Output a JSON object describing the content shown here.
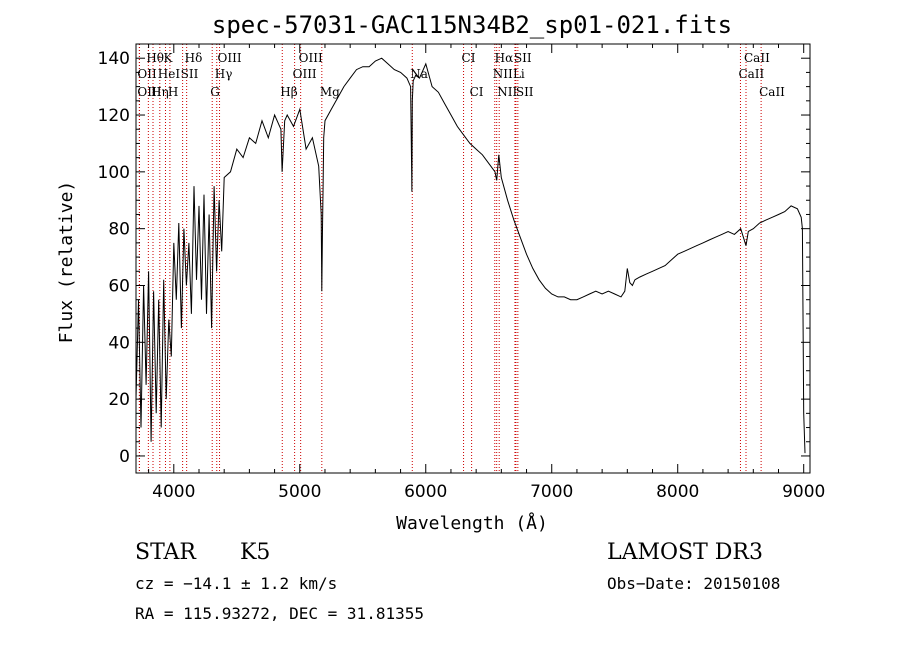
{
  "chart_data": {
    "type": "line",
    "title": "spec-57031-GAC115N34B2_sp01-021.fits",
    "xlabel": "Wavelength (Å)",
    "ylabel": "Flux (relative)",
    "xlim": [
      3700,
      9050
    ],
    "ylim": [
      -6,
      145
    ],
    "xticks": [
      4000,
      5000,
      6000,
      7000,
      8000,
      9000
    ],
    "yticks": [
      0,
      20,
      40,
      60,
      80,
      100,
      120,
      140
    ],
    "series": [
      {
        "name": "flux",
        "x": [
          3700,
          3720,
          3740,
          3760,
          3780,
          3800,
          3820,
          3840,
          3860,
          3880,
          3900,
          3920,
          3940,
          3960,
          3980,
          4000,
          4020,
          4040,
          4060,
          4080,
          4100,
          4120,
          4140,
          4160,
          4180,
          4200,
          4220,
          4240,
          4260,
          4280,
          4300,
          4320,
          4340,
          4360,
          4380,
          4400,
          4450,
          4500,
          4550,
          4600,
          4650,
          4700,
          4750,
          4800,
          4850,
          4860,
          4880,
          4900,
          4950,
          5000,
          5050,
          5100,
          5150,
          5170,
          5175,
          5180,
          5185,
          5190,
          5200,
          5250,
          5300,
          5350,
          5400,
          5450,
          5500,
          5550,
          5600,
          5650,
          5700,
          5750,
          5800,
          5850,
          5880,
          5890,
          5893,
          5896,
          5900,
          5920,
          5950,
          6000,
          6050,
          6100,
          6150,
          6200,
          6250,
          6300,
          6350,
          6400,
          6450,
          6500,
          6550,
          6563,
          6580,
          6600,
          6650,
          6700,
          6750,
          6800,
          6850,
          6900,
          6950,
          7000,
          7050,
          7100,
          7150,
          7200,
          7250,
          7300,
          7350,
          7400,
          7450,
          7500,
          7550,
          7580,
          7600,
          7620,
          7640,
          7660,
          7700,
          7750,
          7800,
          7850,
          7900,
          7950,
          8000,
          8050,
          8100,
          8150,
          8200,
          8250,
          8300,
          8350,
          8400,
          8450,
          8500,
          8542,
          8560,
          8600,
          8650,
          8700,
          8750,
          8800,
          8850,
          8900,
          8950,
          8980,
          8990,
          9000,
          9010
        ],
        "values": [
          20,
          55,
          10,
          60,
          25,
          65,
          5,
          58,
          15,
          55,
          10,
          62,
          20,
          48,
          35,
          75,
          55,
          82,
          45,
          80,
          60,
          75,
          50,
          95,
          62,
          88,
          55,
          92,
          50,
          85,
          45,
          95,
          65,
          90,
          72,
          98,
          100,
          108,
          105,
          112,
          110,
          118,
          112,
          120,
          115,
          100,
          118,
          120,
          116,
          122,
          108,
          112,
          102,
          85,
          58,
          80,
          95,
          112,
          118,
          122,
          126,
          130,
          133,
          136,
          137,
          137,
          139,
          140,
          138,
          136,
          135,
          133,
          130,
          93,
          125,
          128,
          132,
          134,
          133,
          138,
          130,
          128,
          124,
          120,
          116,
          113,
          110,
          108,
          106,
          103,
          100,
          97,
          106,
          98,
          90,
          83,
          77,
          71,
          66,
          62,
          59,
          57,
          56,
          56,
          55,
          55,
          56,
          57,
          58,
          57,
          58,
          57,
          56,
          58,
          66,
          61,
          60,
          62,
          63,
          64,
          65,
          66,
          67,
          69,
          71,
          72,
          73,
          74,
          75,
          76,
          77,
          78,
          79,
          78,
          80,
          74,
          79,
          80,
          82,
          83,
          84,
          85,
          86,
          88,
          87,
          84,
          80,
          15,
          1
        ]
      }
    ],
    "annotations": [
      {
        "label": "Hθ",
        "wavelength": 3798,
        "row": 1
      },
      {
        "label": "OII",
        "wavelength": 3727,
        "row": 2
      },
      {
        "label": "OIII",
        "wavelength": 3727,
        "row": 3
      },
      {
        "label": "Hη",
        "wavelength": 3835,
        "row": 3
      },
      {
        "label": "HeI",
        "wavelength": 3889,
        "row": 2
      },
      {
        "label": "K",
        "wavelength": 3934,
        "row": 1
      },
      {
        "label": "SII",
        "wavelength": 4070,
        "row": 2
      },
      {
        "label": "H",
        "wavelength": 3969,
        "row": 3
      },
      {
        "label": "Hδ",
        "wavelength": 4102,
        "row": 1
      },
      {
        "label": "OIII",
        "wavelength": 4363,
        "row": 1
      },
      {
        "label": "Hγ",
        "wavelength": 4341,
        "row": 2
      },
      {
        "label": "G",
        "wavelength": 4305,
        "row": 3
      },
      {
        "label": "OIII",
        "wavelength": 5007,
        "row": 1
      },
      {
        "label": "OIII",
        "wavelength": 4959,
        "row": 2
      },
      {
        "label": "Hβ",
        "wavelength": 4861,
        "row": 3
      },
      {
        "label": "Mg",
        "wavelength": 5175,
        "row": 3
      },
      {
        "label": "Na",
        "wavelength": 5893,
        "row": 2
      },
      {
        "label": "CI",
        "wavelength": 6300,
        "row": 1
      },
      {
        "label": "CI",
        "wavelength": 6364,
        "row": 3
      },
      {
        "label": "Hα",
        "wavelength": 6563,
        "row": 1
      },
      {
        "label": "SII",
        "wavelength": 6716,
        "row": 1
      },
      {
        "label": "NII",
        "wavelength": 6548,
        "row": 2
      },
      {
        "label": "Li",
        "wavelength": 6708,
        "row": 2
      },
      {
        "label": "NII",
        "wavelength": 6583,
        "row": 3
      },
      {
        "label": "SII",
        "wavelength": 6731,
        "row": 3
      },
      {
        "label": "CaII",
        "wavelength": 8542,
        "row": 1
      },
      {
        "label": "CaII",
        "wavelength": 8498,
        "row": 2
      },
      {
        "label": "CaII",
        "wavelength": 8662,
        "row": 3
      }
    ],
    "line_color": "#000000",
    "marker_line_color": "#cc0000"
  },
  "info": {
    "class": "STAR",
    "subclass": "K5",
    "survey": "LAMOST DR3",
    "redshift": "cz = −14.1 ± 1.2 km/s",
    "obs_date": "Obs−Date: 20150108",
    "coords": "RA = 115.93272, DEC =  31.81355"
  }
}
